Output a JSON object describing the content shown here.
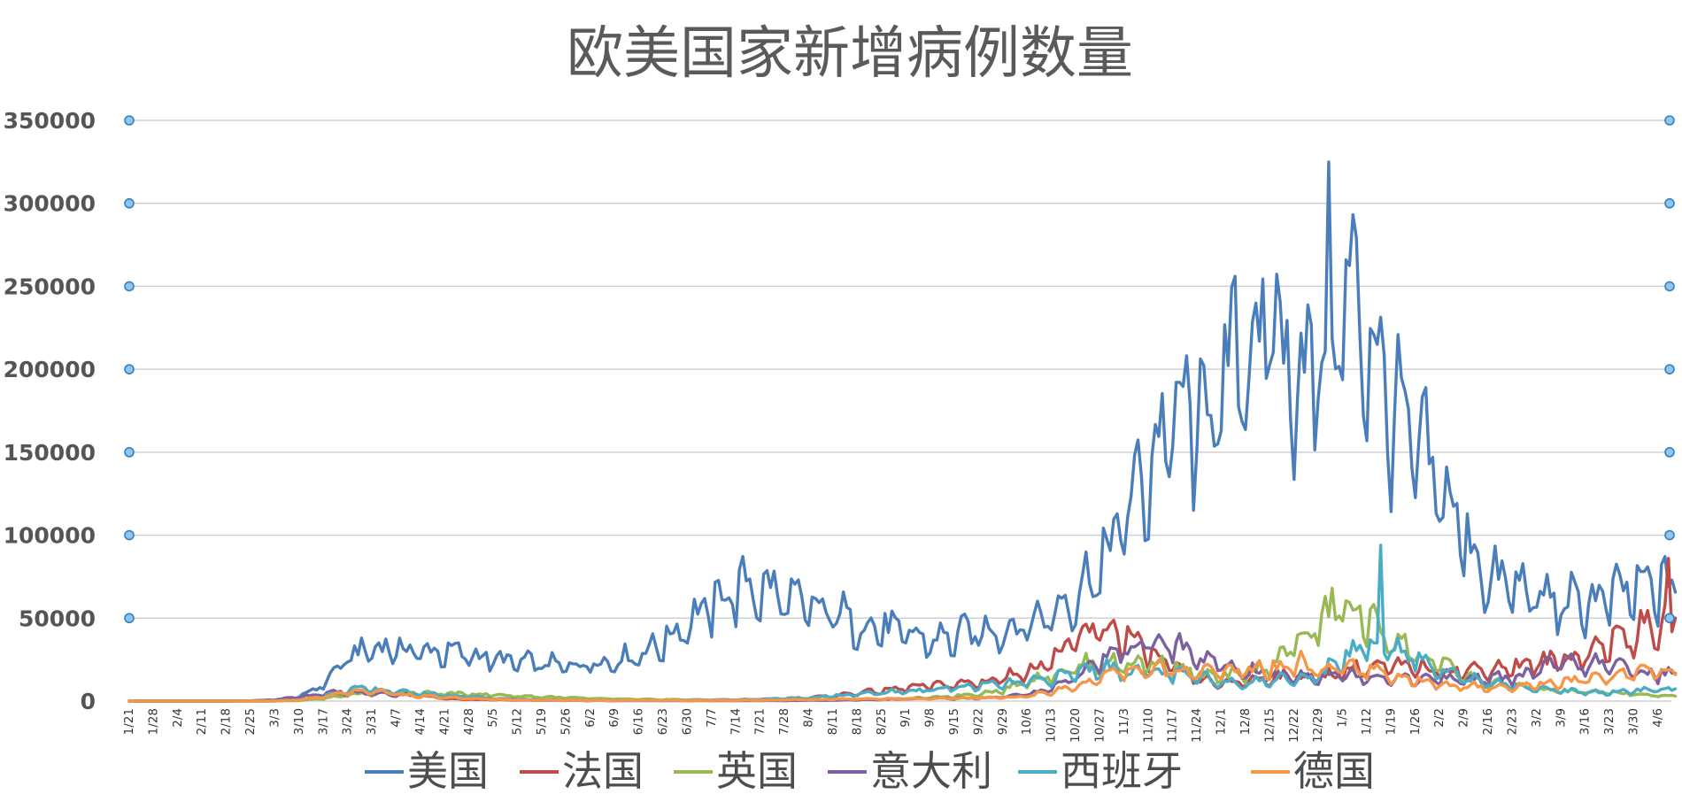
{
  "chart_data": {
    "type": "line",
    "title": "欧美国家新增病例数量",
    "xlabel": "",
    "ylabel": "",
    "ylim": [
      0,
      350000
    ],
    "yticks": [
      "0",
      "50000",
      "100000",
      "150000",
      "200000",
      "250000",
      "300000",
      "350000"
    ],
    "x_tick_labels": [
      "1/21",
      "1/28",
      "2/4",
      "2/11",
      "2/18",
      "2/25",
      "3/3",
      "3/10",
      "3/17",
      "3/24",
      "3/31",
      "4/7",
      "4/14",
      "4/21",
      "4/28",
      "5/5",
      "5/12",
      "5/19",
      "5/26",
      "6/2",
      "6/9",
      "6/16",
      "6/23",
      "6/30",
      "7/7",
      "7/14",
      "7/21",
      "7/28",
      "8/4",
      "8/11",
      "8/18",
      "8/25",
      "9/1",
      "9/8",
      "9/15",
      "9/22",
      "9/29",
      "10/6",
      "10/13",
      "10/20",
      "10/27",
      "11/3",
      "11/10",
      "11/17",
      "11/24",
      "12/1",
      "12/8",
      "12/15",
      "12/22",
      "12/29",
      "1/5",
      "1/12",
      "1/19",
      "1/26",
      "2/2",
      "2/9",
      "2/16",
      "2/23",
      "3/2",
      "3/9",
      "3/16",
      "3/23",
      "3/30",
      "4/6"
    ],
    "series": [
      {
        "name": "美国",
        "color": "#4a7ebb",
        "weekly_values": [
          0,
          0,
          0,
          0,
          0,
          200,
          600,
          2500,
          10000,
          26000,
          32000,
          31000,
          30000,
          29000,
          28000,
          25000,
          23000,
          22000,
          21000,
          23000,
          24000,
          28000,
          35000,
          47000,
          57000,
          67000,
          68000,
          62000,
          54000,
          53000,
          46000,
          44000,
          40000,
          36000,
          38000,
          42000,
          43000,
          46000,
          53000,
          64000,
          80000,
          110000,
          138000,
          170000,
          168000,
          182000,
          215000,
          222000,
          200000,
          204000,
          240000,
          225000,
          175000,
          150000,
          128000,
          100000,
          72000,
          70000,
          62000,
          58000,
          58000,
          62000,
          66000,
          68000
        ],
        "peak": 325000
      },
      {
        "name": "法国",
        "color": "#be4b48",
        "weekly_values": [
          0,
          0,
          0,
          0,
          0,
          0,
          100,
          800,
          2500,
          4000,
          6000,
          4500,
          3000,
          1500,
          1000,
          800,
          600,
          500,
          400,
          400,
          450,
          500,
          550,
          600,
          700,
          800,
          1000,
          1500,
          2000,
          3000,
          5000,
          6000,
          8000,
          9000,
          10000,
          11000,
          14000,
          18000,
          25000,
          35000,
          44000,
          40000,
          28000,
          20000,
          13000,
          10000,
          12000,
          14000,
          15000,
          14000,
          18000,
          20000,
          20000,
          20000,
          19000,
          18000,
          19000,
          21000,
          22000,
          25000,
          28000,
          35000,
          40000,
          45000
        ],
        "peak": 86000
      },
      {
        "name": "英国",
        "color": "#98b954",
        "weekly_values": [
          0,
          0,
          0,
          0,
          0,
          0,
          50,
          400,
          1500,
          3500,
          4500,
          5000,
          4800,
          4500,
          4200,
          3800,
          3000,
          2500,
          2000,
          1500,
          1200,
          1000,
          900,
          800,
          700,
          700,
          700,
          750,
          800,
          900,
          1000,
          1200,
          1500,
          2000,
          3000,
          4500,
          6500,
          12000,
          16000,
          20000,
          23000,
          22000,
          23000,
          20000,
          16000,
          14000,
          16000,
          22000,
          33000,
          46000,
          58000,
          48000,
          38000,
          28000,
          22000,
          15000,
          11000,
          9000,
          7000,
          6000,
          5500,
          5000,
          4500,
          3000
        ],
        "peak": 68000
      },
      {
        "name": "意大利",
        "color": "#7d60a0",
        "weekly_values": [
          0,
          0,
          0,
          0,
          0,
          100,
          800,
          2500,
          4500,
          5500,
          4500,
          4000,
          3500,
          3000,
          2500,
          1500,
          1000,
          700,
          500,
          350,
          250,
          250,
          200,
          200,
          200,
          200,
          250,
          300,
          400,
          500,
          800,
          1000,
          1300,
          1500,
          1600,
          1800,
          2500,
          4000,
          8000,
          15000,
          24000,
          32000,
          35000,
          34000,
          26000,
          21000,
          18000,
          16000,
          15000,
          15000,
          16000,
          15000,
          14000,
          13000,
          13000,
          13000,
          13000,
          14000,
          18000,
          22000,
          22000,
          21000,
          19000,
          16000
        ],
        "peak": 40000
      },
      {
        "name": "西班牙",
        "color": "#4bacc6",
        "weekly_values": [
          0,
          0,
          0,
          0,
          0,
          0,
          100,
          600,
          3000,
          7000,
          7000,
          5500,
          4500,
          3500,
          2500,
          1500,
          1000,
          600,
          500,
          350,
          350,
          400,
          500,
          500,
          600,
          700,
          1000,
          1500,
          2000,
          3000,
          4000,
          5000,
          6000,
          7000,
          8000,
          9000,
          10000,
          11000,
          13000,
          17000,
          20000,
          18000,
          17000,
          16000,
          14000,
          12000,
          11000,
          12000,
          14000,
          15000,
          25000,
          35000,
          35000,
          26000,
          18000,
          14000,
          11000,
          9000,
          7000,
          6000,
          5500,
          5000,
          6000,
          7000
        ],
        "peak": 94000
      },
      {
        "name": "德国",
        "color": "#f79646",
        "weekly_values": [
          0,
          0,
          0,
          0,
          0,
          0,
          100,
          700,
          2500,
          5500,
          6000,
          4500,
          3000,
          2000,
          1500,
          1000,
          700,
          600,
          500,
          400,
          350,
          400,
          500,
          400,
          400,
          450,
          550,
          700,
          900,
          1100,
          1300,
          1400,
          1400,
          1400,
          1600,
          1800,
          2100,
          3000,
          5500,
          9000,
          14000,
          18000,
          19000,
          18000,
          17000,
          17000,
          19000,
          20000,
          22000,
          20000,
          22000,
          18000,
          15000,
          12000,
          10000,
          9000,
          8000,
          8000,
          9000,
          11000,
          13000,
          15000,
          17000,
          18000
        ],
        "peak": 30000
      }
    ]
  }
}
